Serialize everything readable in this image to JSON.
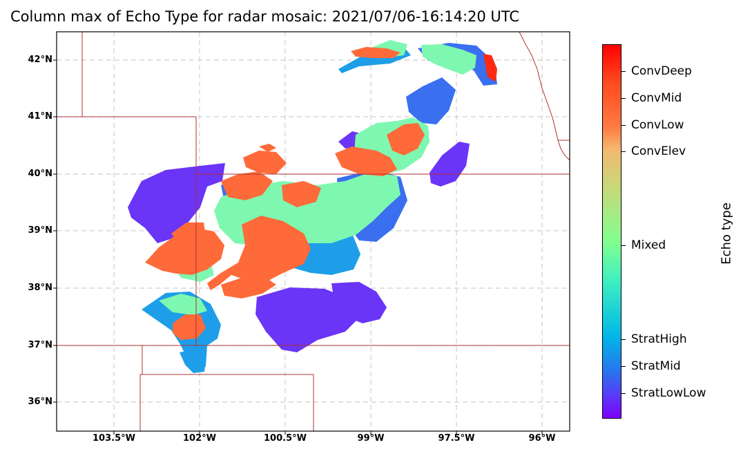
{
  "title": "Column max of Echo Type for radar mosaic: 2021/07/06-16:14:20 UTC",
  "lat_ticks": [
    "42°N",
    "41°N",
    "40°N",
    "39°N",
    "38°N",
    "37°N",
    "36°N"
  ],
  "lon_ticks": [
    "103.5°W",
    "102°W",
    "100.5°W",
    "99°W",
    "97.5°W",
    "96°W"
  ],
  "colorbar": {
    "title": "Echo type",
    "labels": [
      "ConvDeep",
      "ConvMid",
      "ConvLow",
      "ConvElev",
      "Mixed",
      "StratHigh",
      "StratMid",
      "StratLowLow"
    ]
  },
  "colors": {
    "conv": "#ff6a3a",
    "mixed": "#7ef8b0",
    "strat_high": "#1e9ee8",
    "strat_mid": "#3a6ff0",
    "strat_low": "#6a35f6",
    "conv_deep": "#ff2a10",
    "borders": "#b03030"
  }
}
